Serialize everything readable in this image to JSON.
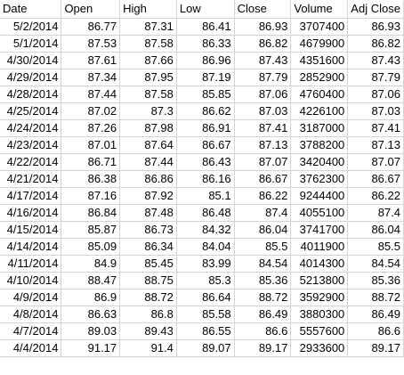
{
  "sheet": {
    "headers": [
      "Date",
      "Open",
      "High",
      "Low",
      "Close",
      "Volume",
      "Adj Close"
    ],
    "rows": [
      [
        "5/2/2014",
        "86.77",
        "87.31",
        "86.41",
        "86.93",
        "3707400",
        "86.93"
      ],
      [
        "5/1/2014",
        "87.53",
        "87.58",
        "86.33",
        "86.82",
        "4679900",
        "86.82"
      ],
      [
        "4/30/2014",
        "87.61",
        "87.66",
        "86.96",
        "87.43",
        "4351600",
        "87.43"
      ],
      [
        "4/29/2014",
        "87.34",
        "87.95",
        "87.19",
        "87.79",
        "2852900",
        "87.79"
      ],
      [
        "4/28/2014",
        "87.44",
        "87.58",
        "85.85",
        "87.06",
        "4760400",
        "87.06"
      ],
      [
        "4/25/2014",
        "87.02",
        "87.3",
        "86.62",
        "87.03",
        "4226100",
        "87.03"
      ],
      [
        "4/24/2014",
        "87.26",
        "87.98",
        "86.91",
        "87.41",
        "3187000",
        "87.41"
      ],
      [
        "4/23/2014",
        "87.01",
        "87.64",
        "86.67",
        "87.13",
        "3788200",
        "87.13"
      ],
      [
        "4/22/2014",
        "86.71",
        "87.44",
        "86.43",
        "87.07",
        "3420400",
        "87.07"
      ],
      [
        "4/21/2014",
        "86.38",
        "86.86",
        "86.16",
        "86.67",
        "3762300",
        "86.67"
      ],
      [
        "4/17/2014",
        "87.16",
        "87.92",
        "85.1",
        "86.22",
        "9244400",
        "86.22"
      ],
      [
        "4/16/2014",
        "86.84",
        "87.48",
        "86.48",
        "87.4",
        "4055100",
        "87.4"
      ],
      [
        "4/15/2014",
        "85.87",
        "86.73",
        "84.32",
        "86.04",
        "3741700",
        "86.04"
      ],
      [
        "4/14/2014",
        "85.09",
        "86.34",
        "84.04",
        "85.5",
        "4011900",
        "85.5"
      ],
      [
        "4/11/2014",
        "84.9",
        "85.45",
        "83.99",
        "84.54",
        "4014300",
        "84.54"
      ],
      [
        "4/10/2014",
        "88.47",
        "88.75",
        "85.3",
        "85.36",
        "5213800",
        "85.36"
      ],
      [
        "4/9/2014",
        "86.9",
        "88.72",
        "86.64",
        "88.72",
        "3592900",
        "88.72"
      ],
      [
        "4/8/2014",
        "86.63",
        "86.8",
        "85.58",
        "86.49",
        "3880300",
        "86.49"
      ],
      [
        "4/7/2014",
        "89.03",
        "89.43",
        "86.55",
        "86.6",
        "5557600",
        "86.6"
      ],
      [
        "4/4/2014",
        "91.17",
        "91.4",
        "89.07",
        "89.17",
        "2933600",
        "89.17"
      ]
    ]
  }
}
